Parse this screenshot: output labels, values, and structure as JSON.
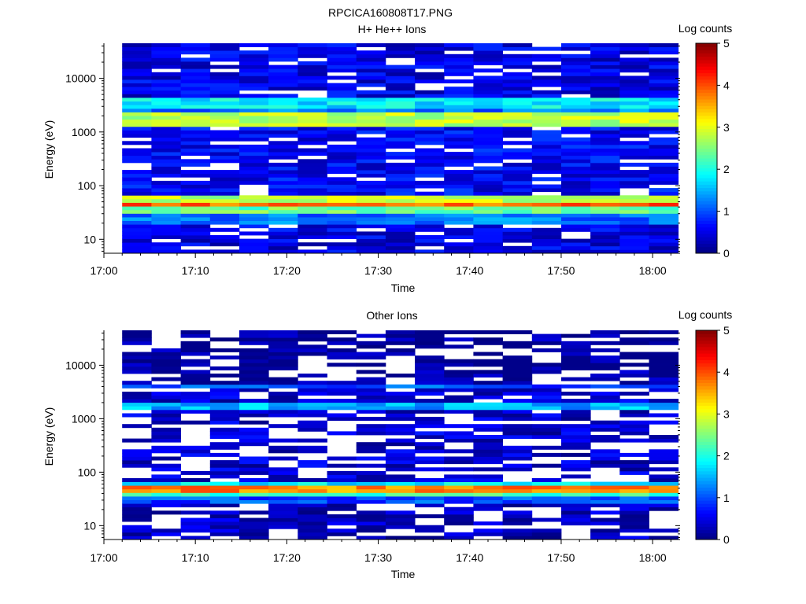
{
  "figure": {
    "title": "RPCICA160808T17.PNG"
  },
  "chart_data": [
    {
      "type": "heatmap",
      "title": "H+ He++ Ions",
      "xlabel": "Time",
      "ylabel": "Energy (eV)",
      "y_scale": "log",
      "ylim": [
        5.5,
        45000
      ],
      "xlim": [
        "17:00",
        "18:03"
      ],
      "x_ticks": [
        "17:00",
        "17:10",
        "17:20",
        "17:30",
        "17:40",
        "17:50",
        "18:00"
      ],
      "y_ticks": [
        "10",
        "100",
        "1000",
        "10000"
      ],
      "colorbar": {
        "label": "Log counts",
        "min": 0,
        "max": 5,
        "ticks": [
          "0",
          "1",
          "2",
          "3",
          "4",
          "5"
        ]
      },
      "data_start": "17:02",
      "bin_minutes": 3.2,
      "bands": [
        {
          "energy_range": [
            5.5,
            20
          ],
          "log_counts": 0.5
        },
        {
          "energy_range": [
            20,
            32
          ],
          "log_counts": 1.2
        },
        {
          "energy_range": [
            32,
            40
          ],
          "log_counts": 2.4
        },
        {
          "energy_range": [
            40,
            52
          ],
          "log_counts": 3.9
        },
        {
          "energy_range": [
            52,
            65
          ],
          "log_counts": 2.8
        },
        {
          "energy_range": [
            65,
            1300
          ],
          "log_counts": 0.6
        },
        {
          "energy_range": [
            1300,
            2200
          ],
          "log_counts": 2.8
        },
        {
          "energy_range": [
            2200,
            2900
          ],
          "log_counts": 1.2
        },
        {
          "energy_range": [
            2900,
            4500
          ],
          "log_counts": 1.8
        },
        {
          "energy_range": [
            4500,
            45000
          ],
          "log_counts": 0.5
        }
      ]
    },
    {
      "type": "heatmap",
      "title": "Other Ions",
      "xlabel": "Time",
      "ylabel": "Energy (eV)",
      "y_scale": "log",
      "ylim": [
        5.5,
        45000
      ],
      "xlim": [
        "17:00",
        "18:03"
      ],
      "x_ticks": [
        "17:00",
        "17:10",
        "17:20",
        "17:30",
        "17:40",
        "17:50",
        "18:00"
      ],
      "y_ticks": [
        "10",
        "100",
        "1000",
        "10000"
      ],
      "colorbar": {
        "label": "Log counts",
        "min": 0,
        "max": 5,
        "ticks": [
          "0",
          "1",
          "2",
          "3",
          "4",
          "5"
        ]
      },
      "data_start": "17:02",
      "bin_minutes": 3.2,
      "bands": [
        {
          "energy_range": [
            5.5,
            28
          ],
          "log_counts": 0.3
        },
        {
          "energy_range": [
            28,
            35
          ],
          "log_counts": 1.0
        },
        {
          "energy_range": [
            35,
            42
          ],
          "log_counts": 2.2
        },
        {
          "energy_range": [
            42,
            55
          ],
          "log_counts": 3.7
        },
        {
          "energy_range": [
            55,
            70
          ],
          "log_counts": 1.8
        },
        {
          "energy_range": [
            70,
            1400
          ],
          "log_counts": 0.4
        },
        {
          "energy_range": [
            1400,
            2000
          ],
          "log_counts": 1.5
        },
        {
          "energy_range": [
            2000,
            3500
          ],
          "log_counts": 0.4
        },
        {
          "energy_range": [
            3500,
            4500
          ],
          "log_counts": 1.0
        },
        {
          "energy_range": [
            4500,
            45000
          ],
          "log_counts": 0.1
        }
      ]
    }
  ]
}
